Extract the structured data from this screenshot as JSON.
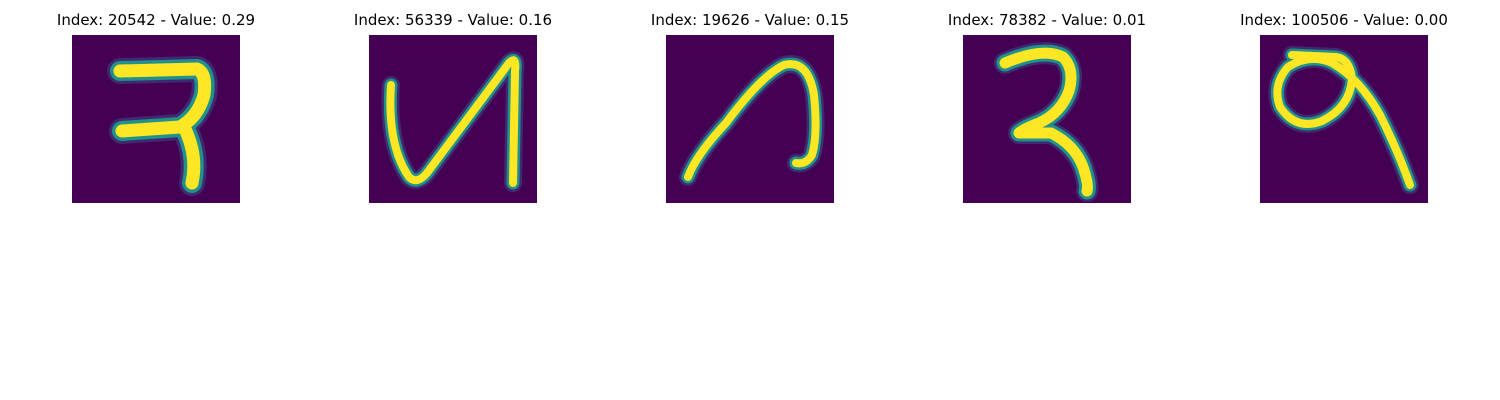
{
  "colors": {
    "background": "#440154",
    "stroke_core": "#fde725",
    "stroke_mid": "#5ec962",
    "stroke_edge": "#21918c",
    "stroke_glow": "#3b528b"
  },
  "samples": [
    {
      "title": "Index: 20542 - Value: 0.29",
      "glyph": "handwritten-character-ra"
    },
    {
      "title": "Index: 56339 - Value: 0.16",
      "glyph": "handwritten-character-ba"
    },
    {
      "title": "Index: 19626 - Value: 0.15",
      "glyph": "handwritten-character-na"
    },
    {
      "title": "Index: 78382 - Value: 0.01",
      "glyph": "handwritten-character-ra-variant"
    },
    {
      "title": "Index: 100506 - Value: 0.00",
      "glyph": "handwritten-character-loop"
    }
  ]
}
